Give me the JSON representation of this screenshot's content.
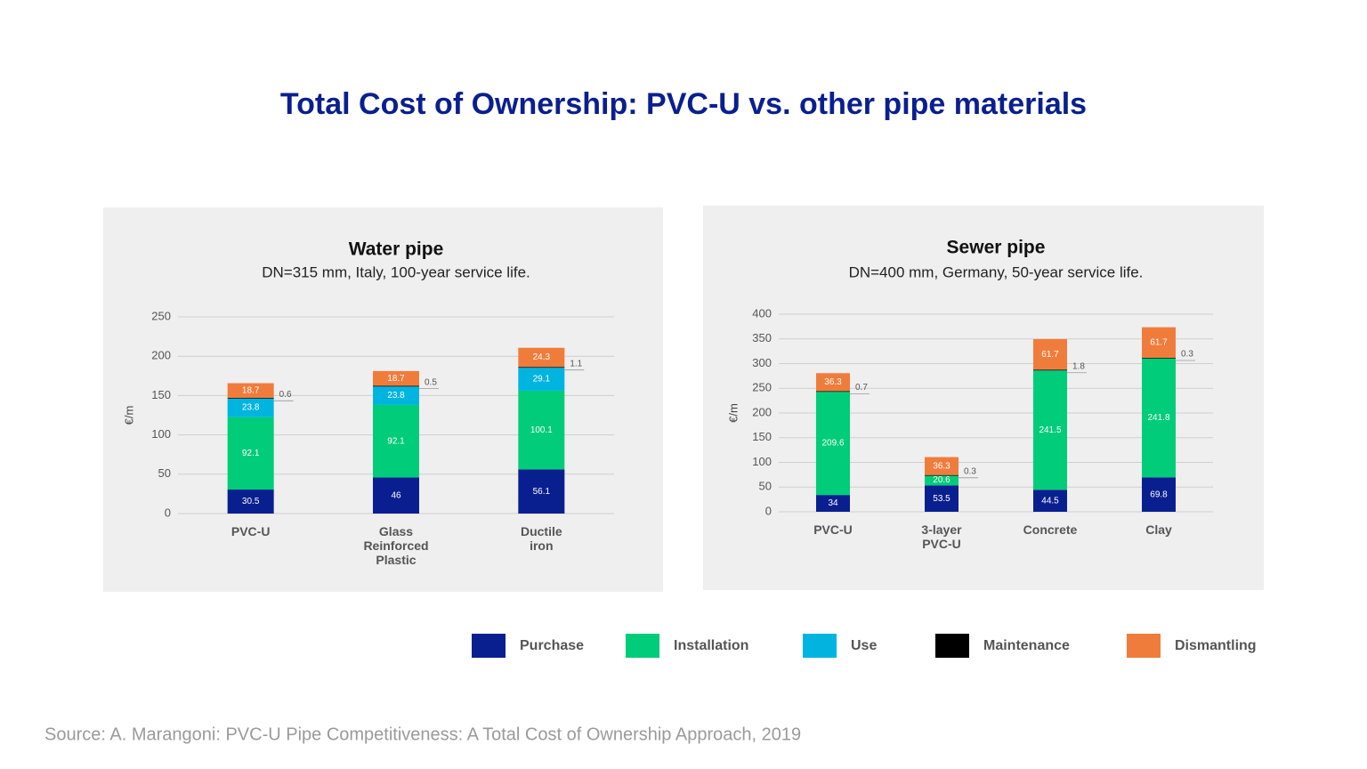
{
  "title": "Total Cost of Ownership: PVC-U vs. other pipe materials",
  "source": "Source: A. Marangoni: PVC-U Pipe Competitiveness: A Total Cost of Ownership Approach, 2019",
  "chart_data": [
    {
      "type": "stacked_bar",
      "title": "Water pipe",
      "subtitle": "DN=315 mm, Italy, 100-year service life.",
      "y_label": "€/m",
      "categories": [
        "PVC-U",
        "Glass Reinforced Plastic",
        "Ductile iron"
      ],
      "ylim": [
        0,
        250
      ],
      "yticks": [
        0,
        50,
        100,
        150,
        200,
        250
      ],
      "grid": true,
      "series": [
        {
          "name": "Purchase",
          "color": "#0a1f8f",
          "values": [
            30.5,
            46,
            56.1
          ]
        },
        {
          "name": "Installation",
          "color": "#00cc7a",
          "values": [
            92.1,
            92.1,
            100.1
          ]
        },
        {
          "name": "Use",
          "color": "#00b4e0",
          "values": [
            23.8,
            23.8,
            29.1
          ]
        },
        {
          "name": "Maintenance",
          "color": "#000000",
          "values": [
            0.6,
            0.5,
            1.1
          ]
        },
        {
          "name": "Dismantling",
          "color": "#f07c3c",
          "values": [
            18.7,
            18.7,
            24.3
          ]
        }
      ]
    },
    {
      "type": "stacked_bar",
      "title": "Sewer pipe",
      "subtitle": "DN=400 mm, Germany, 50-year service life.",
      "y_label": "€/m",
      "categories": [
        "PVC-U",
        "3-layer PVC-U",
        "Concrete",
        "Clay"
      ],
      "ylim": [
        0,
        400
      ],
      "yticks": [
        0,
        50,
        100,
        150,
        200,
        250,
        300,
        350,
        400
      ],
      "grid": true,
      "series": [
        {
          "color": "#0a1f8f",
          "values": [
            34,
            53.5,
            44.5,
            69.8
          ]
        },
        {
          "color": "#00cc7a",
          "values": [
            209.6,
            20.6,
            241.5,
            241.8
          ]
        },
        {
          "color": "#00b4e0",
          "values": [
            null,
            null,
            null,
            null
          ]
        },
        {
          "color": "#000000",
          "values": [
            0.7,
            0.3,
            1.8,
            0.3
          ]
        },
        {
          "color": "#f07c3c",
          "values": [
            36.3,
            36.3,
            61.7,
            61.7
          ]
        }
      ]
    }
  ]
}
